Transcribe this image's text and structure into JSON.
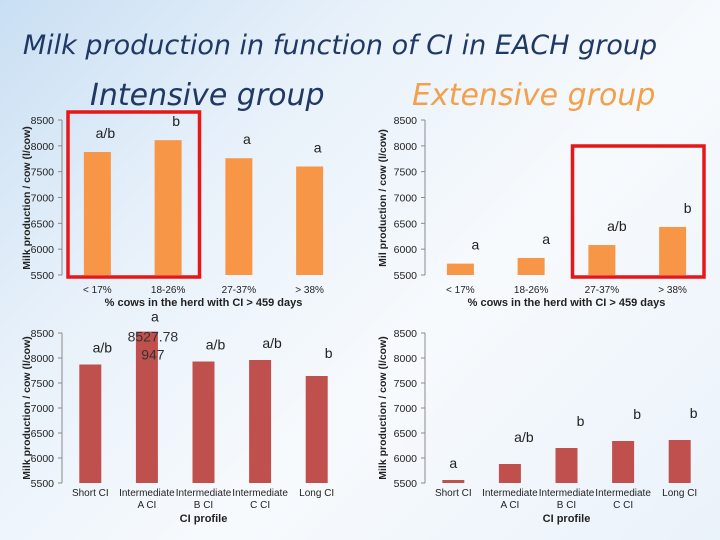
{
  "title": "Milk production in function of CI in EACH group",
  "intensive_title": "Intensive group",
  "extensive_title": "Extensive group",
  "chart_data": [
    {
      "id": "top-left",
      "type": "bar",
      "categories": [
        "< 17%",
        "18-26%",
        "27-37%",
        "> 38%"
      ],
      "values": [
        7880,
        8110,
        7760,
        7600
      ],
      "bar_labels": [
        "a/b",
        "b",
        "a",
        "a"
      ],
      "xlabel": "% cows in the herd with CI > 459 days",
      "ylabel": "Milk production / cow (l/cow)",
      "ylim": [
        5500,
        8500
      ],
      "yticks": [
        5500,
        6000,
        6500,
        7000,
        7500,
        8000,
        8500
      ],
      "color": "#f79646",
      "annotation": "",
      "highlight": {
        "from": 0,
        "to": 1
      }
    },
    {
      "id": "top-right",
      "type": "bar",
      "categories": [
        "< 17%",
        "18-26%",
        "27-37%",
        "> 38%"
      ],
      "values": [
        5720,
        5830,
        6080,
        6430
      ],
      "bar_labels": [
        "a",
        "a",
        "a/b",
        "b"
      ],
      "xlabel": "% cows in the herd with CI > 459 days",
      "ylabel": "Mil production / cow (l/cow)",
      "ylim": [
        5500,
        8500
      ],
      "yticks": [
        5500,
        6000,
        6500,
        7000,
        7500,
        8000,
        8500
      ],
      "color": "#f79646",
      "annotation": "",
      "highlight": {
        "from": 2,
        "to": 3
      }
    },
    {
      "id": "bottom-left",
      "type": "bar",
      "categories": [
        "Short CI",
        "Intermediate A CI",
        "Intermediate B CI",
        "Intermediate C CI",
        "Long CI"
      ],
      "category_lines": [
        [
          "Short CI"
        ],
        [
          "Intermediate",
          "A CI"
        ],
        [
          "Intermediate",
          "B CI"
        ],
        [
          "Intermediate",
          "C CI"
        ],
        [
          "Long CI"
        ]
      ],
      "values": [
        7870,
        8528,
        7930,
        7960,
        7640
      ],
      "bar_labels": [
        "a/b",
        "a",
        "a/b",
        "a/b",
        "b"
      ],
      "xlabel": "CI profile",
      "ylabel": "Milk production / cow (l/cow)",
      "ylim": [
        5500,
        8500
      ],
      "yticks": [
        5500,
        6000,
        6500,
        7000,
        7500,
        8000,
        8500
      ],
      "color": "#c0504d",
      "annotation": "8527.78\n947",
      "highlight": null
    },
    {
      "id": "bottom-right",
      "type": "bar",
      "categories": [
        "Short CI",
        "Intermediate A CI",
        "Intermediate B CI",
        "Intermediate C CI",
        "Long CI"
      ],
      "category_lines": [
        [
          "Short CI"
        ],
        [
          "Intermediate",
          "A CI"
        ],
        [
          "Intermediate",
          "B CI"
        ],
        [
          "Intermediate",
          "C CI"
        ],
        [
          "Long CI"
        ]
      ],
      "values": [
        5560,
        5880,
        6200,
        6340,
        6360
      ],
      "bar_labels": [
        "a",
        "a/b",
        "b",
        "b",
        "b"
      ],
      "xlabel": "CI profile",
      "ylabel": "Milk production / cow (l/cow)",
      "ylim": [
        5500,
        8500
      ],
      "yticks": [
        5500,
        6000,
        6500,
        7000,
        7500,
        8000,
        8500
      ],
      "color": "#c0504d",
      "annotation": "",
      "highlight": null
    }
  ]
}
